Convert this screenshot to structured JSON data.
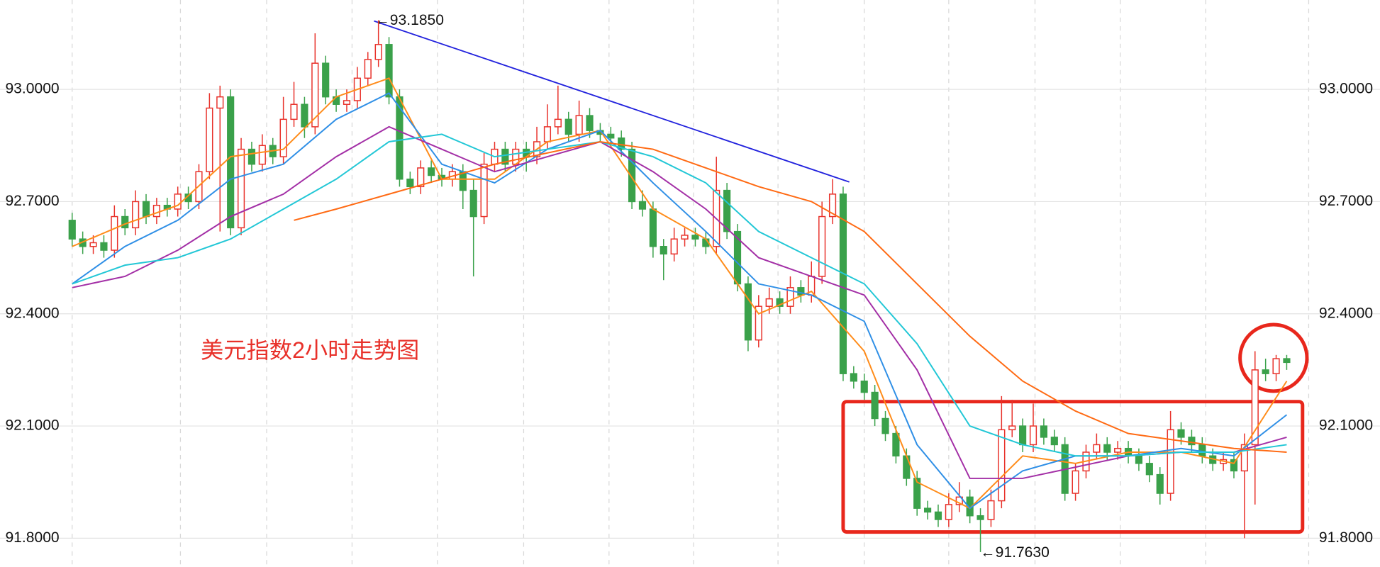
{
  "chart_data": {
    "type": "candlestick",
    "title": "美元指数2小时走势图",
    "annotations": [
      "←93.1850",
      "←91.7630"
    ],
    "ylim": [
      91.723,
      93.239
    ],
    "xlim": [
      -0.5,
      115.5
    ],
    "yticks": [
      {
        "value": 91.8,
        "label": "91.8000"
      },
      {
        "value": 92.1,
        "label": "92.1000"
      },
      {
        "value": 92.4,
        "label": "92.4000"
      },
      {
        "value": 92.7,
        "label": "92.7000"
      },
      {
        "value": 93.0,
        "label": "93.0000"
      }
    ],
    "grid": true,
    "up_color": "#e8312a",
    "down_color": "#3aa14a",
    "ohlc": [
      [
        92.65,
        92.67,
        92.58,
        92.6
      ],
      [
        92.6,
        92.62,
        92.56,
        92.58
      ],
      [
        92.58,
        92.61,
        92.56,
        92.59
      ],
      [
        92.59,
        92.61,
        92.55,
        92.57
      ],
      [
        92.57,
        92.69,
        92.55,
        92.66
      ],
      [
        92.66,
        92.68,
        92.61,
        92.63
      ],
      [
        92.63,
        92.73,
        92.61,
        92.7
      ],
      [
        92.7,
        92.72,
        92.64,
        92.66
      ],
      [
        92.66,
        92.71,
        92.64,
        92.69
      ],
      [
        92.69,
        92.71,
        92.66,
        92.68
      ],
      [
        92.68,
        92.74,
        92.66,
        92.72
      ],
      [
        92.72,
        92.74,
        92.68,
        92.7
      ],
      [
        92.7,
        92.8,
        92.68,
        92.78
      ],
      [
        92.78,
        92.99,
        92.76,
        92.95
      ],
      [
        92.95,
        93.01,
        92.62,
        92.98
      ],
      [
        92.98,
        93.0,
        92.61,
        92.63
      ],
      [
        92.63,
        92.87,
        92.61,
        92.84
      ],
      [
        92.84,
        92.86,
        92.78,
        92.8
      ],
      [
        92.8,
        92.88,
        92.78,
        92.85
      ],
      [
        92.85,
        92.87,
        92.8,
        92.82
      ],
      [
        92.82,
        92.98,
        92.8,
        92.92
      ],
      [
        92.92,
        93.02,
        92.9,
        92.96
      ],
      [
        92.96,
        92.98,
        92.87,
        92.9
      ],
      [
        92.9,
        93.15,
        92.88,
        93.07
      ],
      [
        93.07,
        93.09,
        92.96,
        92.98
      ],
      [
        92.98,
        93.0,
        92.94,
        92.96
      ],
      [
        92.96,
        93.0,
        92.94,
        92.97
      ],
      [
        92.97,
        93.06,
        92.95,
        93.03
      ],
      [
        93.03,
        93.1,
        93.01,
        93.08
      ],
      [
        93.08,
        93.185,
        93.06,
        93.12
      ],
      [
        93.12,
        93.14,
        92.96,
        92.98
      ],
      [
        92.98,
        93.0,
        92.74,
        92.76
      ],
      [
        92.76,
        92.78,
        92.72,
        92.74
      ],
      [
        92.74,
        92.81,
        92.72,
        92.79
      ],
      [
        92.79,
        92.81,
        92.75,
        92.77
      ],
      [
        92.77,
        92.79,
        92.74,
        92.76
      ],
      [
        92.76,
        92.8,
        92.74,
        92.78
      ],
      [
        92.78,
        92.8,
        92.68,
        92.73
      ],
      [
        92.73,
        92.76,
        92.5,
        92.66
      ],
      [
        92.66,
        92.83,
        92.64,
        92.8
      ],
      [
        92.8,
        92.86,
        92.78,
        92.84
      ],
      [
        92.84,
        92.86,
        92.78,
        92.8
      ],
      [
        92.8,
        92.86,
        92.78,
        92.84
      ],
      [
        92.84,
        92.86,
        92.78,
        92.82
      ],
      [
        92.82,
        92.9,
        92.8,
        92.86
      ],
      [
        92.86,
        92.96,
        92.84,
        92.9
      ],
      [
        92.9,
        93.01,
        92.88,
        92.92
      ],
      [
        92.92,
        92.94,
        92.86,
        92.88
      ],
      [
        92.88,
        92.97,
        92.86,
        92.93
      ],
      [
        92.93,
        92.95,
        92.87,
        92.89
      ],
      [
        92.89,
        92.91,
        92.86,
        92.88
      ],
      [
        92.88,
        92.9,
        92.85,
        92.87
      ],
      [
        92.87,
        92.89,
        92.82,
        92.84
      ],
      [
        92.84,
        92.86,
        92.68,
        92.7
      ],
      [
        92.7,
        92.73,
        92.66,
        92.68
      ],
      [
        92.68,
        92.7,
        92.55,
        92.58
      ],
      [
        92.58,
        92.6,
        92.49,
        92.56
      ],
      [
        92.56,
        92.63,
        92.54,
        92.6
      ],
      [
        92.6,
        92.63,
        92.58,
        92.61
      ],
      [
        92.61,
        92.63,
        92.58,
        92.6
      ],
      [
        92.6,
        92.62,
        92.56,
        92.58
      ],
      [
        92.58,
        92.82,
        92.56,
        92.73
      ],
      [
        92.73,
        92.75,
        92.6,
        92.62
      ],
      [
        92.62,
        92.64,
        92.46,
        92.48
      ],
      [
        92.48,
        92.5,
        92.3,
        92.33
      ],
      [
        92.33,
        92.45,
        92.31,
        92.42
      ],
      [
        92.42,
        92.47,
        92.4,
        92.44
      ],
      [
        92.44,
        92.46,
        92.4,
        92.42
      ],
      [
        92.42,
        92.5,
        92.4,
        92.47
      ],
      [
        92.47,
        92.49,
        92.43,
        92.45
      ],
      [
        92.45,
        92.54,
        92.43,
        92.5
      ],
      [
        92.5,
        92.7,
        92.48,
        92.66
      ],
      [
        92.66,
        92.76,
        92.64,
        92.72
      ],
      [
        92.72,
        92.74,
        92.22,
        92.24
      ],
      [
        92.24,
        92.26,
        92.2,
        92.22
      ],
      [
        92.22,
        92.24,
        92.17,
        92.19
      ],
      [
        92.19,
        92.21,
        92.1,
        92.12
      ],
      [
        92.12,
        92.14,
        92.06,
        92.08
      ],
      [
        92.08,
        92.1,
        92.0,
        92.02
      ],
      [
        92.02,
        92.04,
        91.94,
        91.96
      ],
      [
        91.96,
        91.98,
        91.86,
        91.88
      ],
      [
        91.88,
        91.9,
        91.85,
        91.87
      ],
      [
        91.87,
        91.89,
        91.83,
        91.85
      ],
      [
        91.85,
        91.92,
        91.83,
        91.89
      ],
      [
        91.89,
        91.95,
        91.87,
        91.91
      ],
      [
        91.91,
        91.93,
        91.84,
        91.86
      ],
      [
        91.86,
        91.88,
        91.763,
        91.85
      ],
      [
        91.85,
        91.93,
        91.83,
        91.9
      ],
      [
        91.9,
        92.18,
        91.88,
        92.09
      ],
      [
        92.09,
        92.17,
        92.07,
        92.1
      ],
      [
        92.1,
        92.12,
        92.03,
        92.05
      ],
      [
        92.05,
        92.16,
        92.03,
        92.1
      ],
      [
        92.1,
        92.12,
        92.05,
        92.07
      ],
      [
        92.07,
        92.09,
        92.03,
        92.05
      ],
      [
        92.05,
        92.07,
        91.9,
        91.92
      ],
      [
        91.92,
        92.0,
        91.9,
        91.98
      ],
      [
        91.98,
        92.05,
        91.96,
        92.03
      ],
      [
        92.03,
        92.08,
        92.01,
        92.05
      ],
      [
        92.05,
        92.07,
        92.01,
        92.03
      ],
      [
        92.03,
        92.06,
        92.01,
        92.04
      ],
      [
        92.04,
        92.06,
        92.0,
        92.02
      ],
      [
        92.02,
        92.04,
        91.98,
        92.0
      ],
      [
        92.0,
        92.02,
        91.95,
        91.97
      ],
      [
        91.97,
        91.99,
        91.89,
        91.92
      ],
      [
        91.92,
        92.14,
        91.9,
        92.09
      ],
      [
        92.09,
        92.11,
        92.05,
        92.07
      ],
      [
        92.07,
        92.09,
        92.03,
        92.05
      ],
      [
        92.05,
        92.07,
        92.0,
        92.02
      ],
      [
        92.02,
        92.04,
        91.98,
        92.0
      ],
      [
        92.0,
        92.03,
        91.98,
        92.01
      ],
      [
        92.01,
        92.03,
        91.96,
        91.98
      ],
      [
        91.98,
        92.08,
        91.8,
        92.05
      ],
      [
        92.05,
        92.3,
        91.89,
        92.25
      ],
      [
        92.25,
        92.28,
        92.22,
        92.24
      ],
      [
        92.24,
        92.29,
        92.22,
        92.28
      ],
      [
        92.28,
        92.29,
        92.25,
        92.27
      ]
    ],
    "lines": [
      {
        "color": "#ff8c1a",
        "x": [
          0,
          5,
          10,
          15,
          20,
          25,
          30,
          35,
          40,
          45,
          50,
          55,
          60,
          65,
          70,
          75,
          80,
          85,
          90,
          95,
          100,
          105,
          110,
          115
        ],
        "values": [
          92.58,
          92.64,
          92.69,
          92.82,
          92.84,
          92.98,
          93.03,
          92.76,
          92.76,
          92.86,
          92.89,
          92.68,
          92.6,
          92.4,
          92.46,
          92.3,
          91.95,
          91.88,
          92.02,
          92.0,
          92.03,
          92.03,
          92.0,
          92.22
        ]
      },
      {
        "color": "#2f8fe6",
        "x": [
          0,
          5,
          10,
          15,
          20,
          25,
          30,
          35,
          40,
          45,
          50,
          55,
          60,
          65,
          70,
          75,
          80,
          85,
          90,
          95,
          100,
          105,
          110,
          115
        ],
        "values": [
          92.48,
          92.58,
          92.65,
          92.76,
          92.8,
          92.92,
          92.99,
          92.8,
          92.75,
          92.84,
          92.89,
          92.75,
          92.62,
          92.48,
          92.45,
          92.38,
          92.05,
          91.88,
          91.98,
          92.02,
          92.02,
          92.04,
          92.02,
          92.13
        ]
      },
      {
        "color": "#a32fa6",
        "x": [
          0,
          5,
          10,
          15,
          20,
          25,
          30,
          35,
          40,
          45,
          50,
          55,
          60,
          65,
          70,
          75,
          80,
          85,
          90,
          95,
          100,
          105,
          110,
          115
        ],
        "values": [
          92.47,
          92.5,
          92.57,
          92.66,
          92.72,
          92.82,
          92.9,
          92.84,
          92.78,
          92.82,
          92.86,
          92.78,
          92.68,
          92.55,
          92.5,
          92.45,
          92.25,
          91.96,
          91.96,
          91.99,
          92.02,
          92.03,
          92.03,
          92.07
        ]
      },
      {
        "color": "#22c7d6",
        "x": [
          0,
          5,
          10,
          15,
          20,
          25,
          30,
          35,
          40,
          45,
          50,
          55,
          60,
          65,
          70,
          75,
          80,
          85,
          90,
          95,
          100,
          105,
          110,
          115
        ],
        "values": [
          92.48,
          92.53,
          92.55,
          92.6,
          92.68,
          92.76,
          92.86,
          92.88,
          92.82,
          92.84,
          92.86,
          92.82,
          92.75,
          92.62,
          92.55,
          92.48,
          92.32,
          92.1,
          92.05,
          92.02,
          92.02,
          92.03,
          92.03,
          92.05
        ]
      },
      {
        "color": "#ff6a13",
        "x": [
          21,
          25,
          30,
          35,
          40,
          45,
          50,
          55,
          60,
          65,
          70,
          75,
          80,
          85,
          90,
          95,
          100,
          105,
          110,
          115
        ],
        "values": [
          92.65,
          92.68,
          92.72,
          92.76,
          92.8,
          92.83,
          92.86,
          92.84,
          92.79,
          92.74,
          92.7,
          92.62,
          92.48,
          92.34,
          92.22,
          92.14,
          92.08,
          92.06,
          92.04,
          92.03
        ]
      }
    ]
  }
}
